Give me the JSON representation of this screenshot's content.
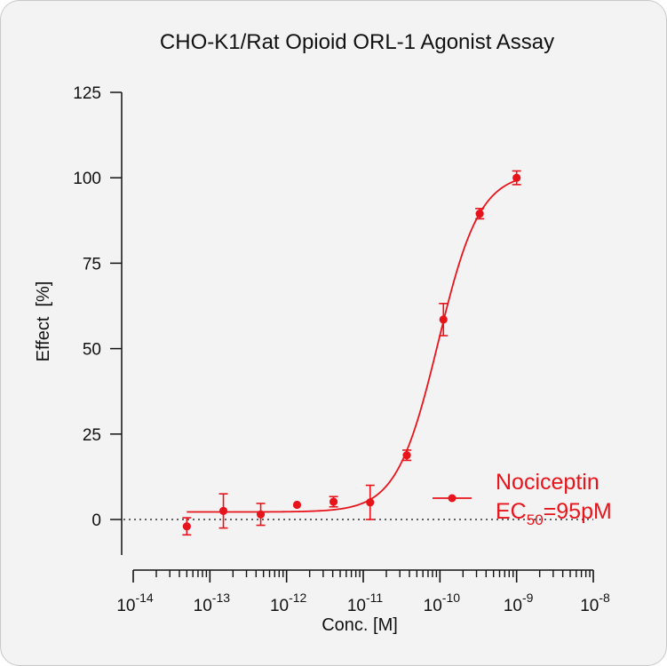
{
  "chart_data": {
    "type": "scatter",
    "title": "CHO-K1/Rat Opioid ORL-1 Agonist Assay",
    "xlabel": "Conc. [M]",
    "ylabel": "Effect  [%]",
    "x_scale": "log",
    "xlim": [
      1e-14,
      1e-08
    ],
    "ylim": [
      -10,
      125
    ],
    "x_ticks": [
      {
        "base": "10",
        "exp": "-14"
      },
      {
        "base": "10",
        "exp": "-13"
      },
      {
        "base": "10",
        "exp": "-12"
      },
      {
        "base": "10",
        "exp": "-11"
      },
      {
        "base": "10",
        "exp": "-10"
      },
      {
        "base": "10",
        "exp": "-9"
      },
      {
        "base": "10",
        "exp": "-8"
      }
    ],
    "y_ticks": [
      0,
      25,
      50,
      75,
      100,
      125
    ],
    "y_tick_labels": [
      "0",
      "25",
      "50",
      "75",
      "100",
      "125"
    ],
    "reference_line_y": 0,
    "series": [
      {
        "name": "Nociceptin",
        "color": "#e8141b",
        "x": [
          5e-14,
          1.5e-13,
          4.6e-13,
          1.37e-12,
          4.1e-12,
          1.23e-11,
          3.7e-11,
          1.11e-10,
          3.3e-10,
          1e-09
        ],
        "y": [
          -2,
          2.5,
          1.5,
          4.3,
          5.2,
          5,
          18.8,
          58.5,
          89.5,
          100
        ],
        "error": [
          2.5,
          5,
          3.2,
          0,
          1.5,
          5,
          1.5,
          4.7,
          1.5,
          2
        ],
        "fit": {
          "bottom": 2.2,
          "top": 101.5,
          "ec50": 9.5e-11,
          "hill": 1.6
        }
      }
    ],
    "legend": {
      "position": "bottom-right",
      "entries": [
        {
          "label": "Nociceptin",
          "ec_prefix": "EC",
          "ec_sub": "50",
          "ec_value": "=95pM"
        }
      ]
    },
    "grid": false
  }
}
